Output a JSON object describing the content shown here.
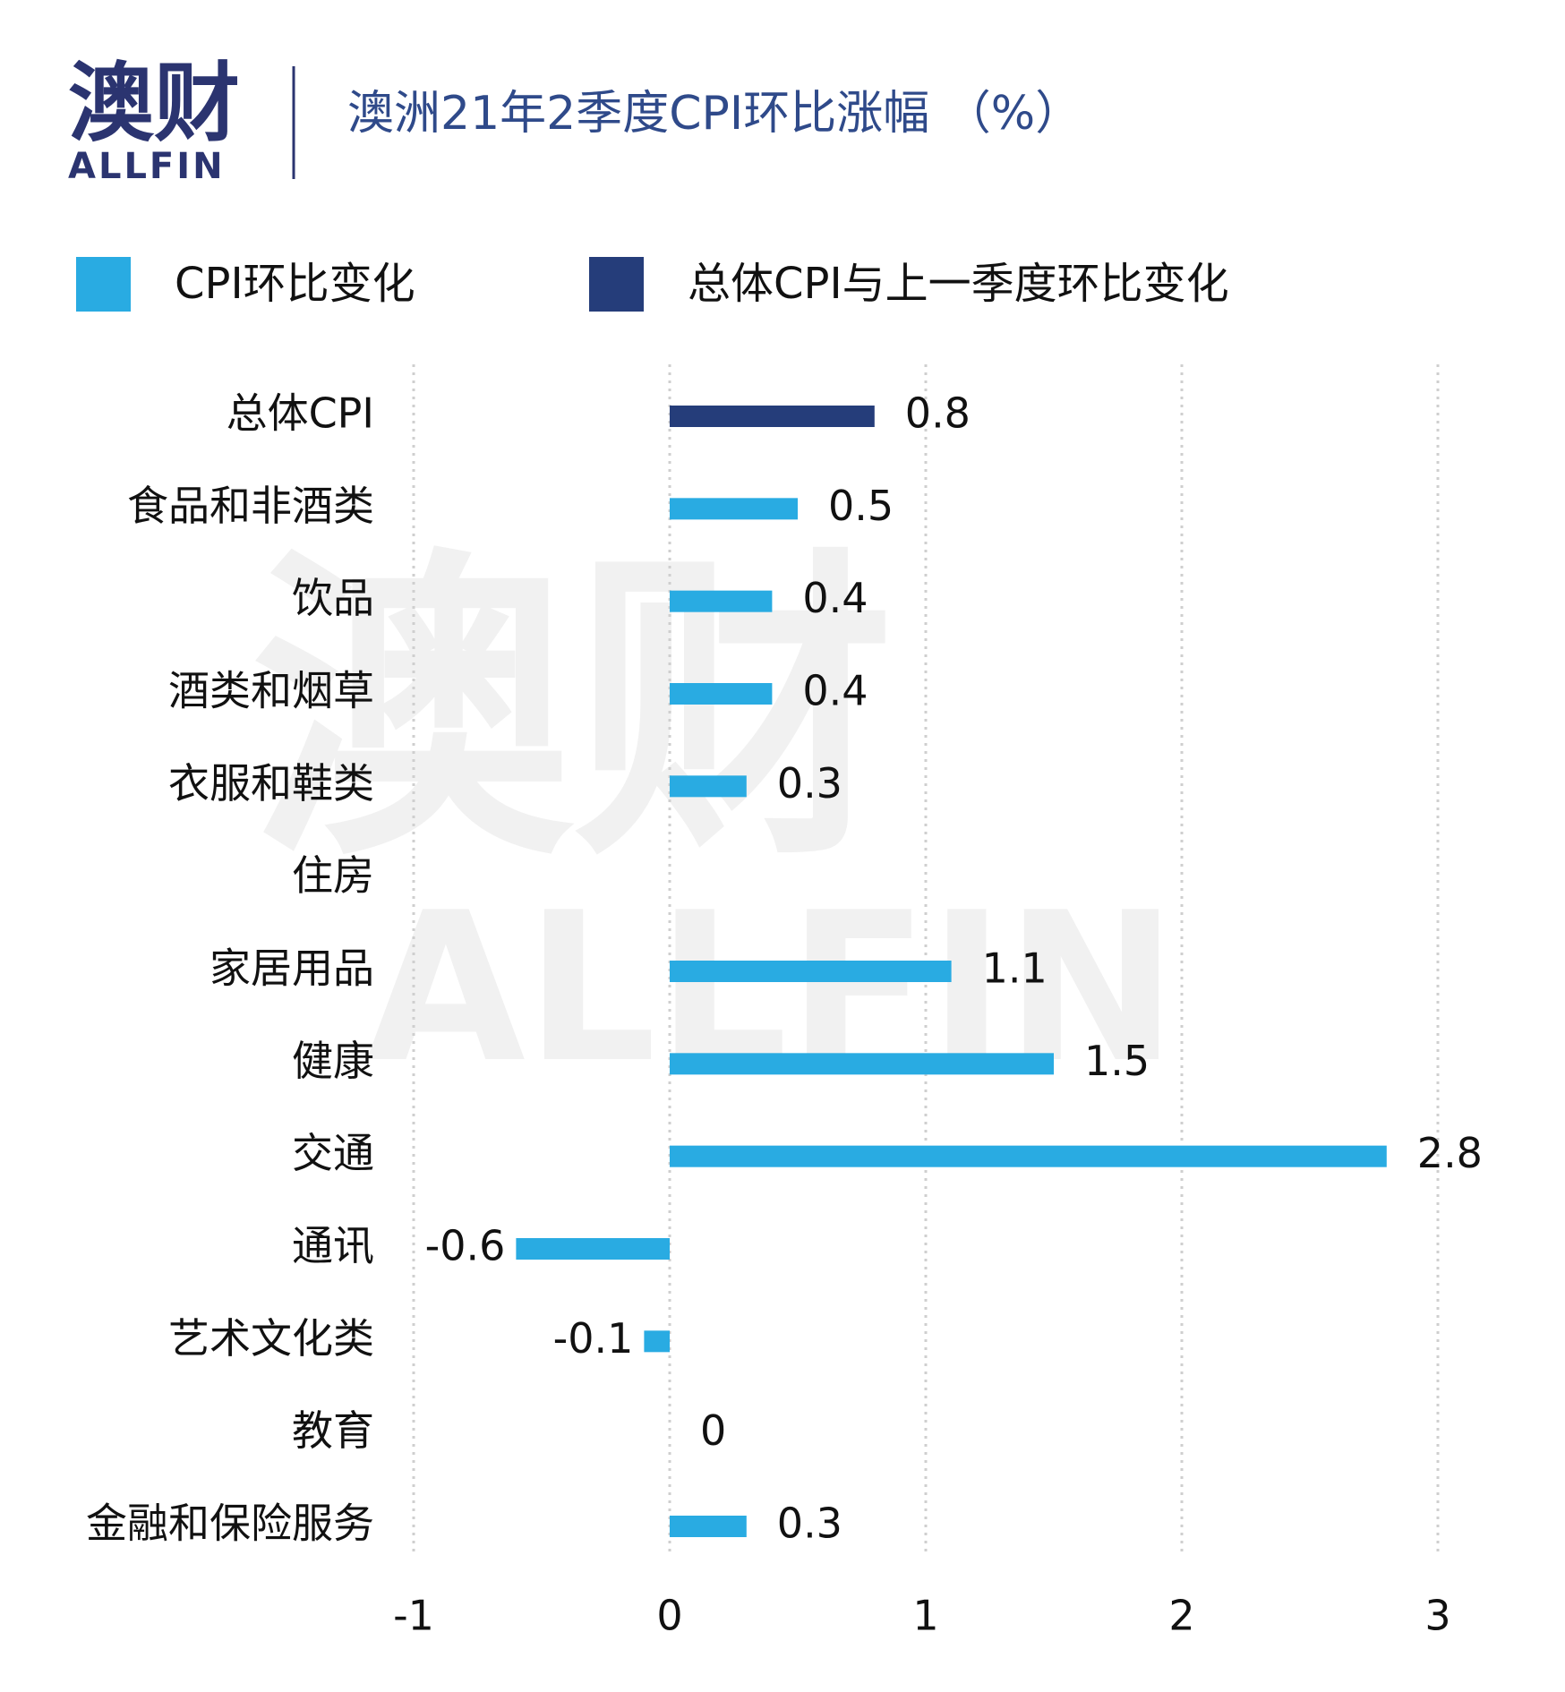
{
  "logo": {
    "cn": "澳财",
    "en": "ALLFIN"
  },
  "chart_data": {
    "type": "hbar",
    "title": "澳洲21年2季度CPI环比涨幅 （%）",
    "categories": [
      "总体CPI",
      "食品和非酒类",
      "饮品",
      "酒类和烟草",
      "衣服和鞋类",
      "住房",
      "家居用品",
      "健康",
      "交通",
      "通讯",
      "艺术文化类",
      "教育",
      "金融和保险服务"
    ],
    "series": [
      {
        "name": "CPI环比变化",
        "color": "#29abe2",
        "values": [
          null,
          0.5,
          0.4,
          0.4,
          0.3,
          null,
          1.1,
          1.5,
          2.8,
          -0.6,
          -0.1,
          0,
          0.3
        ]
      },
      {
        "name": "总体CPI与上一季度环比变化",
        "color": "#253d7a",
        "values": [
          0.8,
          null,
          null,
          null,
          null,
          null,
          null,
          null,
          null,
          null,
          null,
          null,
          null
        ]
      }
    ],
    "xlim": [
      -1,
      3
    ],
    "xticks": [
      -1,
      0,
      1,
      2,
      3
    ],
    "grid": true
  }
}
